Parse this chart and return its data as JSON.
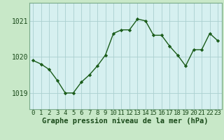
{
  "x": [
    0,
    1,
    2,
    3,
    4,
    5,
    6,
    7,
    8,
    9,
    10,
    11,
    12,
    13,
    14,
    15,
    16,
    17,
    18,
    19,
    20,
    21,
    22,
    23
  ],
  "y": [
    1019.9,
    1019.8,
    1019.65,
    1019.35,
    1019.0,
    1019.0,
    1019.3,
    1019.5,
    1019.75,
    1020.05,
    1020.65,
    1020.75,
    1020.75,
    1021.05,
    1021.0,
    1020.6,
    1020.6,
    1020.3,
    1020.05,
    1019.75,
    1020.2,
    1020.2,
    1020.65,
    1020.45
  ],
  "line_color": "#1a5c1a",
  "marker_color": "#1a5c1a",
  "bg_color": "#d6f0f0",
  "grid_color": "#aacfcf",
  "xlabel": "Graphe pression niveau de la mer (hPa)",
  "xlabel_fontsize": 7.5,
  "ylabel_ticks": [
    1019,
    1020,
    1021
  ],
  "xlim": [
    -0.5,
    23.5
  ],
  "ylim": [
    1018.55,
    1021.5
  ],
  "outer_bg": "#c8e8c8",
  "ytick_fontsize": 7,
  "xtick_fontsize": 6.5
}
